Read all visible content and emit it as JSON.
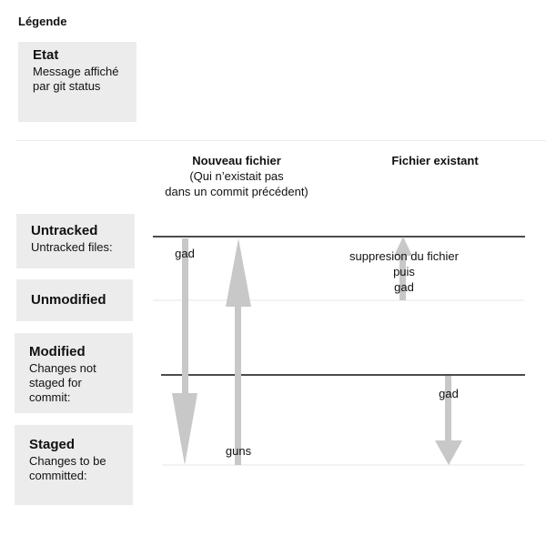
{
  "legend": {
    "title": "Légende",
    "state_title": "Etat",
    "state_desc_1": "Message affiché",
    "state_desc_2": "par git status"
  },
  "columns": {
    "new_file_title": "Nouveau fichier",
    "new_file_sub_1": "(Qui n’existait pas",
    "new_file_sub_2": "dans un commit précédent)",
    "existing_file_title": "Fichier existant"
  },
  "states": {
    "untracked": {
      "title": "Untracked",
      "desc": "Untracked files:"
    },
    "unmodified": {
      "title": "Unmodified"
    },
    "modified": {
      "title": "Modified",
      "desc_1": "Changes not",
      "desc_2": "staged for",
      "desc_3": "commit:"
    },
    "staged": {
      "title": "Staged",
      "desc_1": "Changes to be",
      "desc_2": "committed:"
    }
  },
  "arrows": {
    "gad_down_label": "gad",
    "guns_up_label": "guns",
    "suppression_1": "suppresion du fichier",
    "suppression_2": "puis",
    "suppression_3": "gad",
    "existing_gad_label": "gad"
  },
  "colors": {
    "arrow": "#c8c8c8",
    "box": "#ececec",
    "line": "#111111",
    "faint_line": "#e6e6e6"
  }
}
